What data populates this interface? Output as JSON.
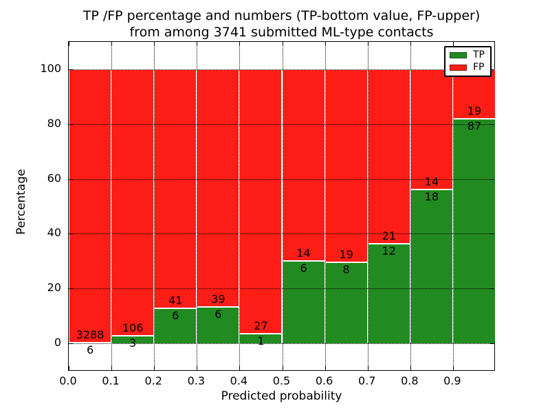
{
  "figure": {
    "title_line1": "TP /FP percentage and numbers (TP-bottom value, FP-upper)",
    "title_line2": "from among 3741 submitted ML-type contacts"
  },
  "axes": {
    "xlabel": "Predicted probability",
    "ylabel": "Percentage",
    "x_tick_labels": [
      "0.0",
      "0.1",
      "0.2",
      "0.3",
      "0.4",
      "0.5",
      "0.6",
      "0.7",
      "0.8",
      "0.9"
    ],
    "y_tick_labels": [
      "0",
      "20",
      "40",
      "60",
      "80",
      "100"
    ],
    "y_tick_values": [
      0,
      20,
      40,
      60,
      80,
      100
    ]
  },
  "legend": {
    "items": [
      {
        "label": "TP",
        "color": "#218a21"
      },
      {
        "label": "FP",
        "color": "#fc1d16"
      }
    ]
  },
  "chart_data": {
    "type": "bar",
    "stacked": true,
    "normalized": "each 0.1-wide probability bin scaled to 100%",
    "title": "TP /FP percentage and numbers (TP-bottom value, FP-upper) from among 3741 submitted ML-type contacts",
    "xlabel": "Predicted probability",
    "ylabel": "Percentage",
    "total_contacts": 3741,
    "bin_starts": [
      0.0,
      0.1,
      0.2,
      0.3,
      0.4,
      0.5,
      0.6,
      0.7,
      0.8,
      0.9
    ],
    "bin_width": 0.1,
    "series": [
      {
        "name": "TP",
        "color": "#218a21",
        "counts": [
          6,
          3,
          6,
          6,
          1,
          6,
          8,
          12,
          18,
          87
        ]
      },
      {
        "name": "FP",
        "color": "#fc1d16",
        "counts": [
          3288,
          106,
          41,
          39,
          27,
          14,
          19,
          21,
          14,
          19
        ]
      }
    ],
    "tp_percent_of_bin": [
      0.18,
      2.75,
      12.77,
      13.33,
      3.57,
      30.0,
      29.63,
      36.36,
      56.25,
      82.08
    ],
    "xlim": [
      0.0,
      1.0
    ],
    "ylim": [
      -10.3,
      110.0
    ],
    "yticks": [
      0,
      20,
      40,
      60,
      80,
      100
    ],
    "grid": "dotted, both axes",
    "legend_position": "upper right"
  }
}
